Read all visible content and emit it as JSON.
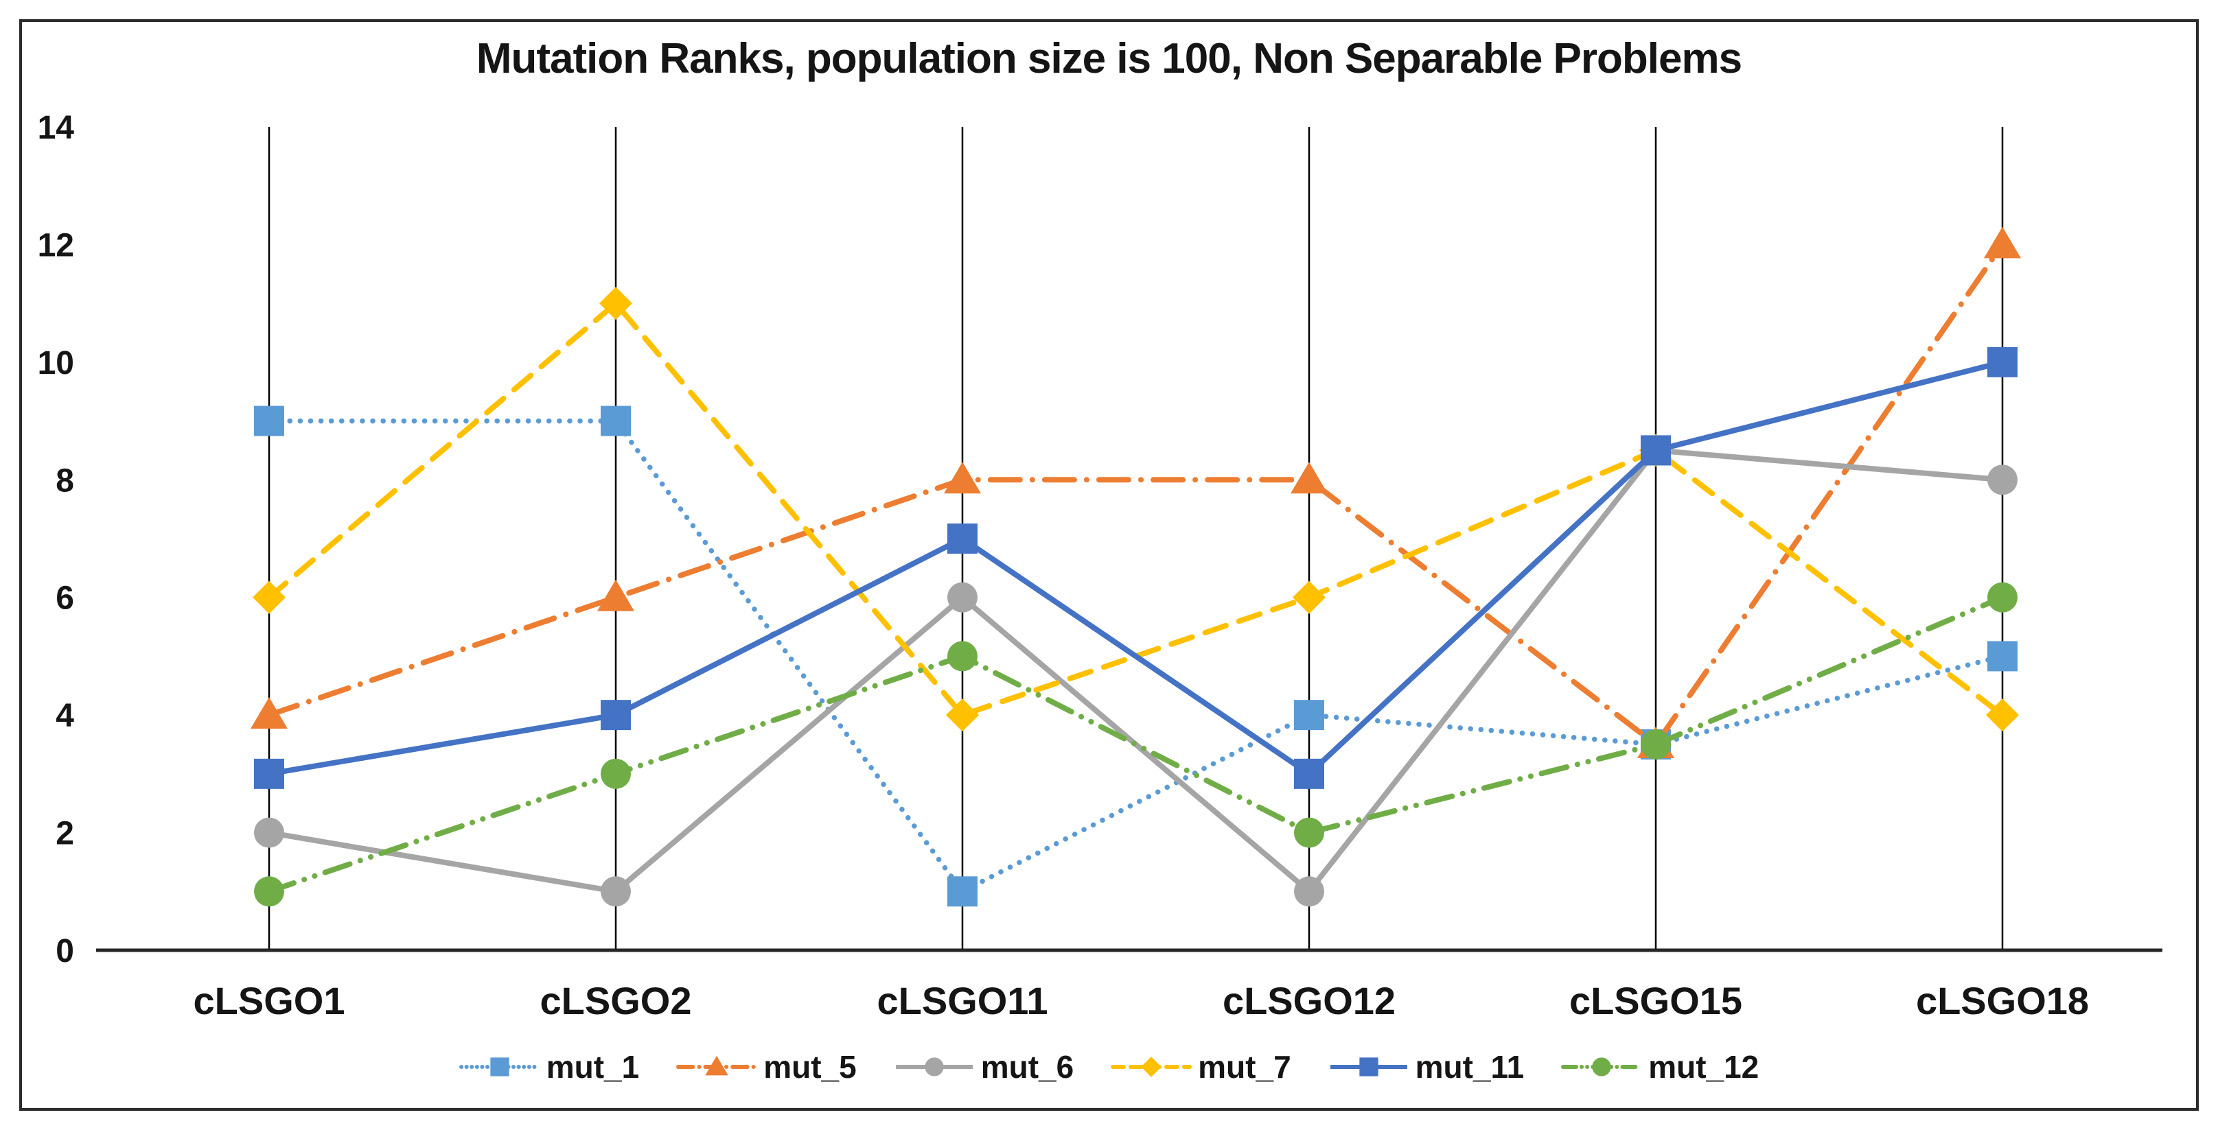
{
  "title": "Mutation Ranks, population size is 100, Non Separable Problems",
  "chart_data": {
    "type": "line",
    "title": "Mutation Ranks, population size is 100, Non Separable Problems",
    "xlabel": "",
    "ylabel": "",
    "categories": [
      "cLSGO1",
      "cLSGO2",
      "cLSGO11",
      "cLSGO12",
      "cLSGO15",
      "cLSGO18"
    ],
    "series": [
      {
        "name": "mut_1",
        "color": "#5B9BD5",
        "line_style": "dotted",
        "marker": "square",
        "values": [
          9,
          9,
          1,
          4,
          3.5,
          5
        ]
      },
      {
        "name": "mut_5",
        "color": "#ED7D31",
        "line_style": "dash-dot",
        "marker": "triangle",
        "values": [
          4,
          6,
          8,
          8,
          3.5,
          12
        ]
      },
      {
        "name": "mut_6",
        "color": "#A5A5A5",
        "line_style": "solid",
        "marker": "circle",
        "values": [
          2,
          1,
          6,
          1,
          8.5,
          8
        ]
      },
      {
        "name": "mut_7",
        "color": "#FFC000",
        "line_style": "dashed",
        "marker": "diamond",
        "values": [
          6,
          11,
          4,
          6,
          8.5,
          4
        ]
      },
      {
        "name": "mut_11",
        "color": "#4472C4",
        "line_style": "solid",
        "marker": "square",
        "values": [
          3,
          4,
          7,
          3,
          8.5,
          10
        ]
      },
      {
        "name": "mut_12",
        "color": "#70AD47",
        "line_style": "dash-dot-dot",
        "marker": "circle",
        "values": [
          1,
          3,
          5,
          2,
          3.5,
          6
        ]
      }
    ],
    "ylim": [
      0,
      14
    ],
    "ytick_step": 2,
    "yticks": [
      0,
      2,
      4,
      6,
      8,
      10,
      12,
      14
    ],
    "grid": "vertical-category-lines",
    "legend_position": "bottom",
    "axis_color": "#262626",
    "text_color": "#151515"
  }
}
